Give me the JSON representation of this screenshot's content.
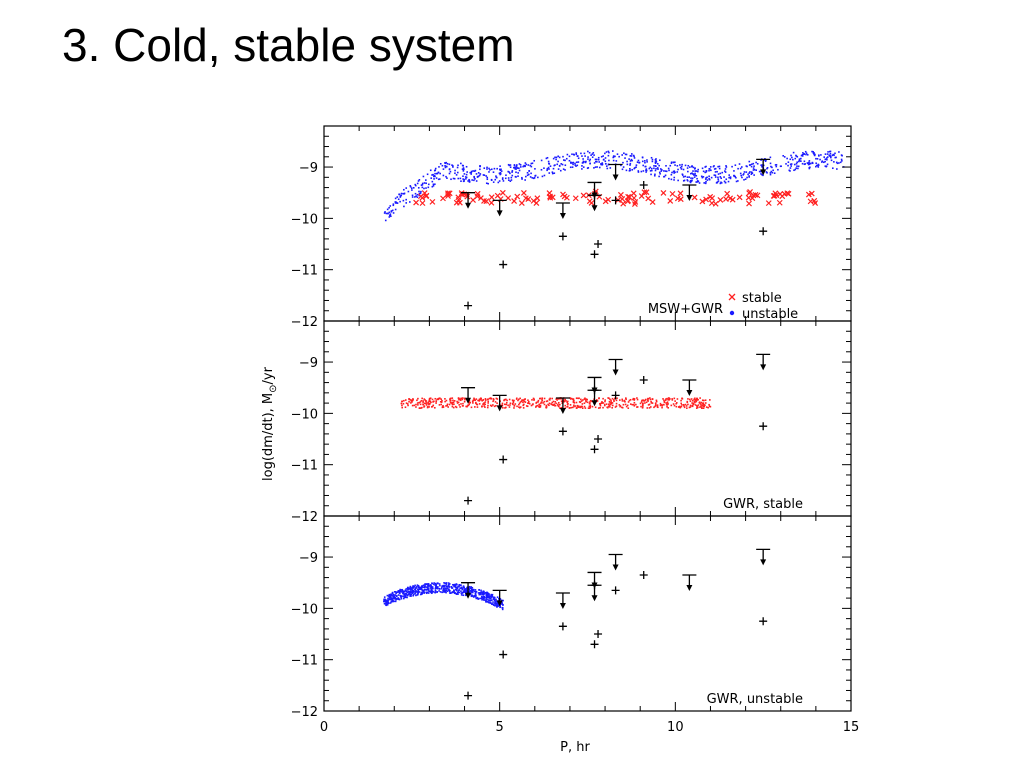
{
  "slide": {
    "title": "3. Cold, stable system"
  },
  "chart_data": {
    "type": "scatter",
    "xlabel": "P, hr",
    "ylabel": "log(dm/dt), M",
    "ylabel_sub": "⊙",
    "ylabel_suffix": "/yr",
    "xlim": [
      0,
      15
    ],
    "ylim": [
      -12,
      -8.2
    ],
    "x_ticks": [
      0,
      5,
      10,
      15
    ],
    "y_ticks": [
      -12,
      -11,
      -10,
      -9
    ],
    "colors": {
      "stable": "#ff2020",
      "unstable": "#1a1aff",
      "observed": "#000000"
    },
    "observed_points": [
      {
        "x": 4.1,
        "y": -11.7
      },
      {
        "x": 5.1,
        "y": -10.9
      },
      {
        "x": 6.8,
        "y": -10.35
      },
      {
        "x": 7.7,
        "y": -10.7
      },
      {
        "x": 7.8,
        "y": -10.5
      },
      {
        "x": 8.3,
        "y": -9.65
      },
      {
        "x": 9.1,
        "y": -9.35
      },
      {
        "x": 12.5,
        "y": -10.25
      },
      {
        "x": 7.7,
        "y": -9.55
      }
    ],
    "upper_limits": [
      {
        "x": 4.1,
        "y": -9.5
      },
      {
        "x": 5.0,
        "y": -9.65
      },
      {
        "x": 6.8,
        "y": -9.7
      },
      {
        "x": 7.7,
        "y": -9.3
      },
      {
        "x": 7.7,
        "y": -9.55
      },
      {
        "x": 8.3,
        "y": -8.95
      },
      {
        "x": 10.4,
        "y": -9.35
      },
      {
        "x": 12.5,
        "y": -8.85
      }
    ],
    "panels": [
      {
        "label": "MSW+GWR",
        "legend": [
          {
            "name": "stable",
            "marker": "x"
          },
          {
            "name": "unstable",
            "marker": "dot"
          }
        ],
        "series": [
          {
            "name": "unstable",
            "x_range": [
              1.7,
              14.8
            ],
            "y_center": -9.15,
            "spread": 0.35
          },
          {
            "name": "stable",
            "x_range": [
              2.6,
              14.1
            ],
            "y_center": -9.6,
            "spread": 0.25
          }
        ]
      },
      {
        "label": "GWR, stable",
        "series": [
          {
            "name": "stable",
            "x_range": [
              2.2,
              11.0
            ],
            "y_center": -9.8,
            "spread": 0.2
          }
        ]
      },
      {
        "label": "GWR, unstable",
        "series": [
          {
            "name": "unstable",
            "x_range": [
              1.7,
              5.1
            ],
            "y_center": -9.6,
            "spread": 0.2
          }
        ]
      }
    ]
  }
}
